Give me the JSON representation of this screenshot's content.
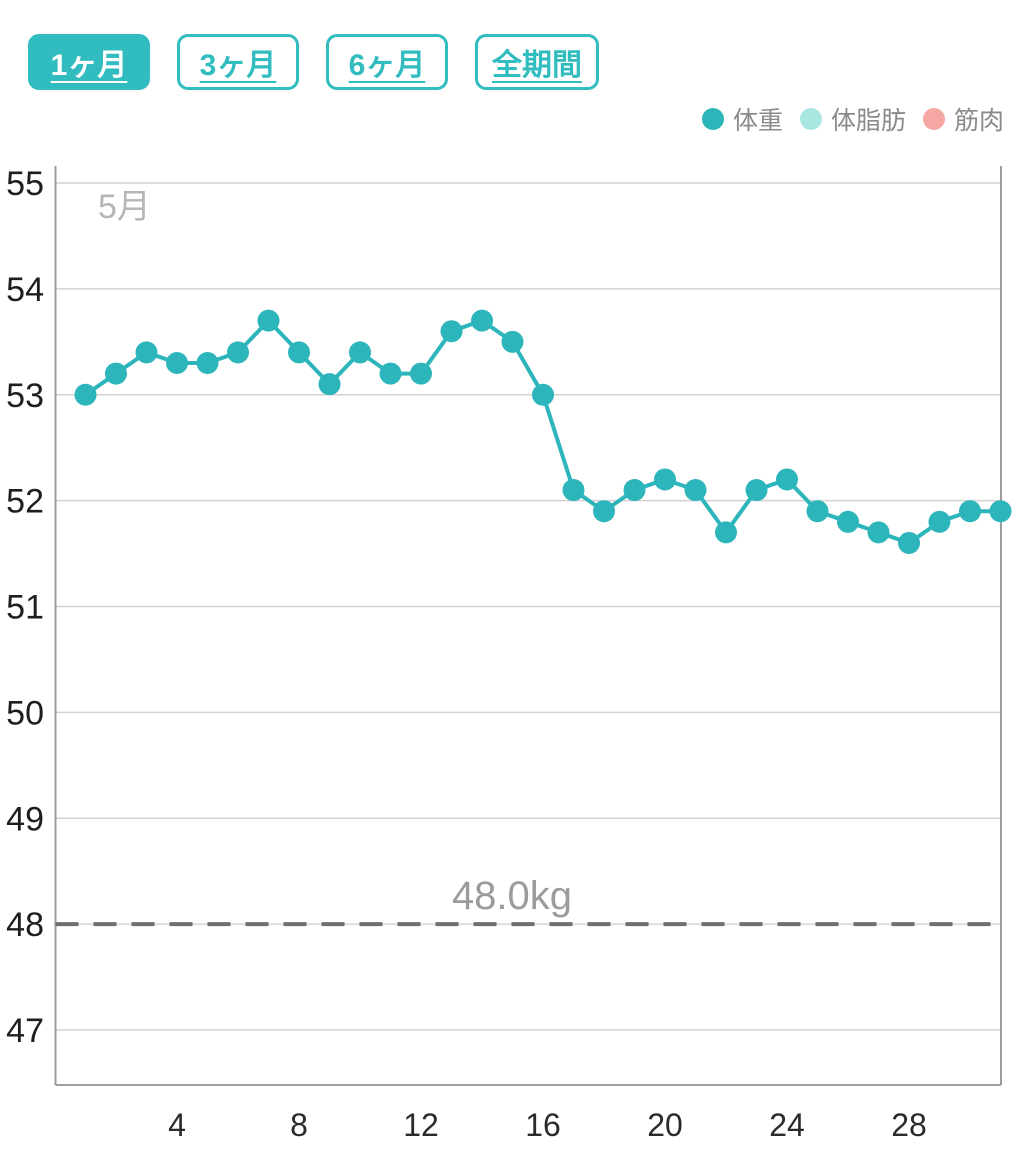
{
  "tabs": [
    {
      "label": "1ヶ月",
      "selected": true
    },
    {
      "label": "3ヶ月",
      "selected": false
    },
    {
      "label": "6ヶ月",
      "selected": false
    },
    {
      "label": "全期間",
      "selected": false
    }
  ],
  "colors": {
    "accent": "#31bcc0",
    "series_weight": "#2cb5bb",
    "legend_body_fat": "#a9e6e2",
    "legend_muscle": "#f6a6a3",
    "grid": "#d2d2d2",
    "axis": "#9c9c9c",
    "y_tick_text": "#1e1e1e",
    "x_tick_text": "#2b2b2b",
    "month_text": "#b6b6b6",
    "goal_line": "#6f6f6f",
    "goal_text": "#9b9b9b"
  },
  "chart_data": {
    "type": "line",
    "title": "",
    "month_label": "5月",
    "x_unit": "day_of_month",
    "x": [
      1,
      2,
      3,
      4,
      5,
      6,
      7,
      8,
      9,
      10,
      11,
      12,
      13,
      14,
      15,
      16,
      17,
      18,
      19,
      20,
      21,
      22,
      23,
      24,
      25,
      26,
      27,
      28,
      29,
      30,
      31
    ],
    "series": [
      {
        "name": "体重",
        "color": "#2cb5bb",
        "values": [
          53.0,
          53.2,
          53.4,
          53.3,
          53.3,
          53.4,
          53.7,
          53.4,
          53.1,
          53.4,
          53.2,
          53.2,
          53.6,
          53.7,
          53.5,
          53.0,
          52.1,
          51.9,
          52.1,
          52.2,
          52.1,
          51.7,
          52.1,
          52.2,
          51.9,
          51.8,
          51.7,
          51.6,
          51.8,
          51.9,
          51.9
        ]
      }
    ],
    "legend": [
      {
        "label": "体重",
        "color": "#2cb5bb"
      },
      {
        "label": "体脂肪",
        "color": "#a9e6e2"
      },
      {
        "label": "筋肉",
        "color": "#f6a6a3"
      }
    ],
    "goal_line": {
      "value": 48.0,
      "label": "48.0kg"
    },
    "yticks": [
      55,
      54,
      53,
      52,
      51,
      50,
      49,
      48,
      47
    ],
    "xticks": [
      4,
      8,
      12,
      16,
      20,
      24,
      28
    ],
    "ylim": [
      46.5,
      55.2
    ],
    "xlim": [
      0,
      31
    ],
    "grid": true,
    "legend_position": "top-right"
  }
}
